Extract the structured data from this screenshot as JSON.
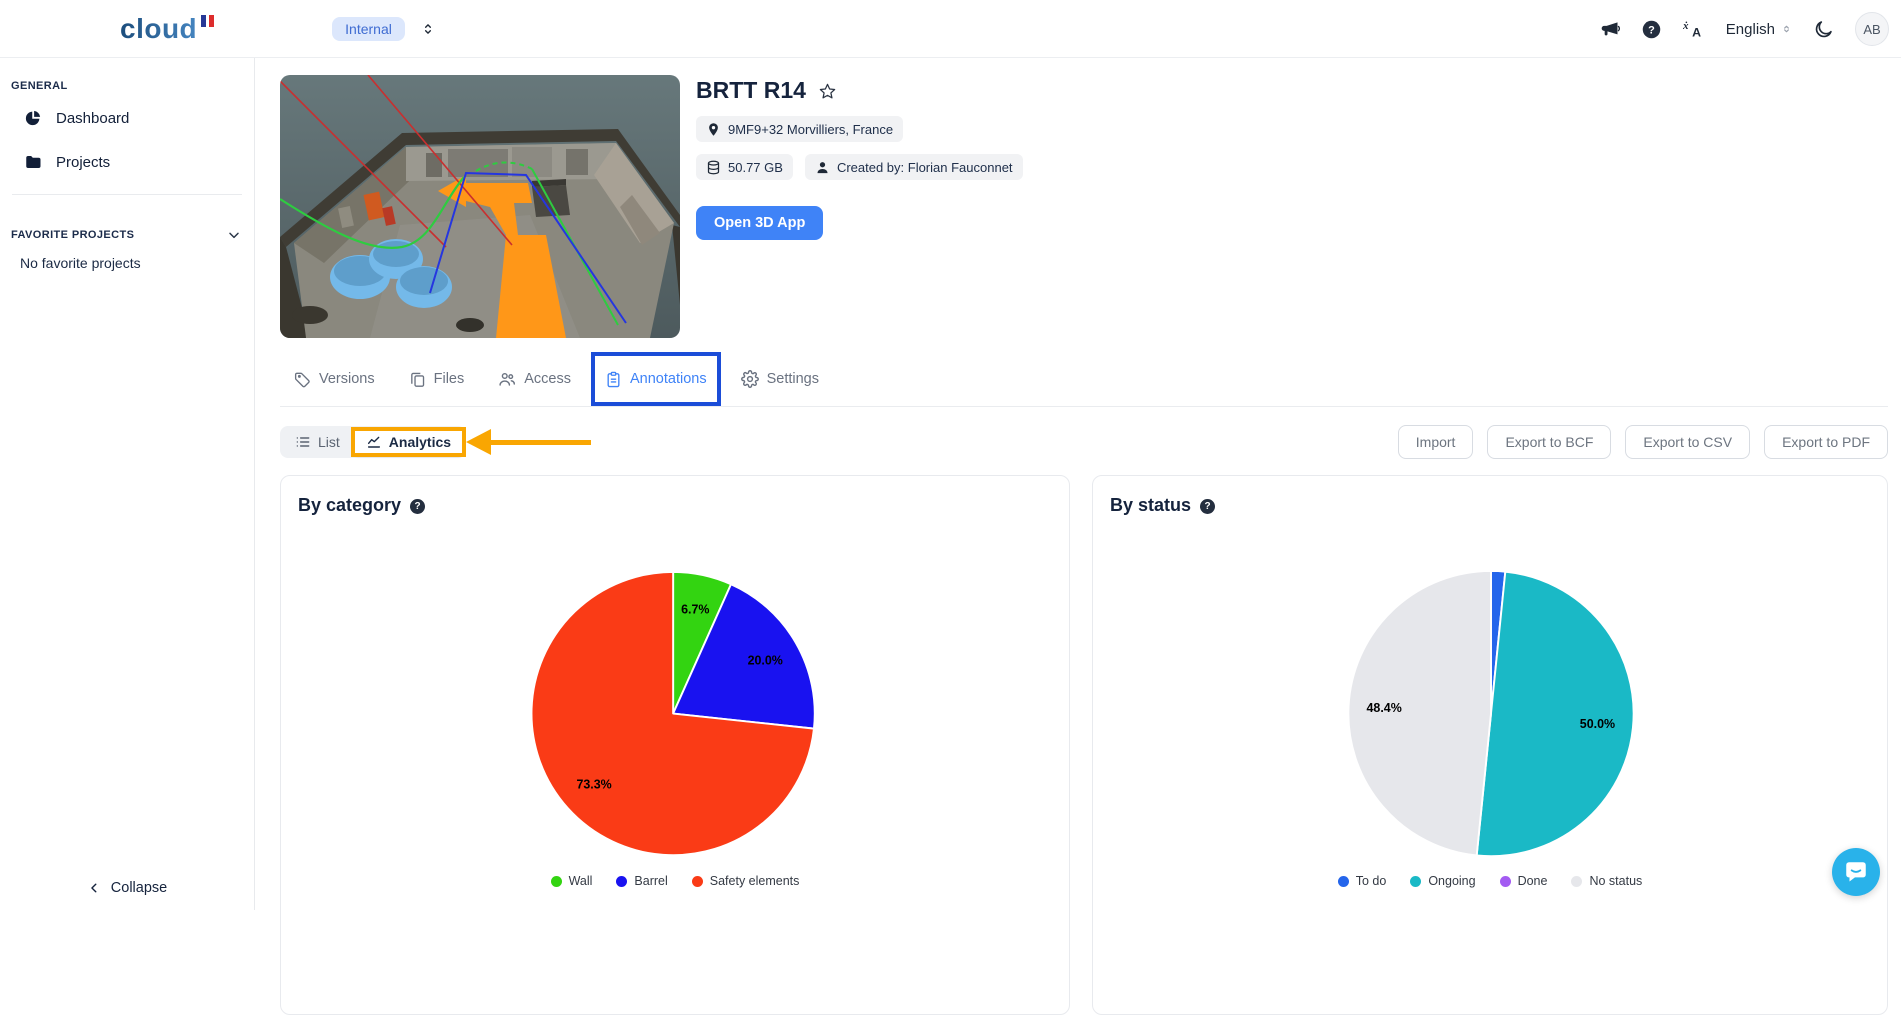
{
  "header": {
    "logo_text": "cloud",
    "environment": "Internal",
    "language": "English",
    "avatar_initials": "AB"
  },
  "sidebar": {
    "general_label": "GENERAL",
    "items": [
      {
        "label": "Dashboard"
      },
      {
        "label": "Projects"
      }
    ],
    "favorites_label": "FAVORITE PROJECTS",
    "favorites_empty": "No favorite projects",
    "collapse_label": "Collapse"
  },
  "project": {
    "title": "BRTT R14",
    "location": "9MF9+32 Morvilliers, France",
    "size": "50.77 GB",
    "created_by": "Created by: Florian Fauconnet",
    "open_app_label": "Open 3D App"
  },
  "tabs": [
    {
      "label": "Versions"
    },
    {
      "label": "Files"
    },
    {
      "label": "Access"
    },
    {
      "label": "Annotations",
      "active": true
    },
    {
      "label": "Settings"
    }
  ],
  "toolbar": {
    "view_list": "List",
    "view_analytics": "Analytics",
    "import_label": "Import",
    "export_bcf": "Export to BCF",
    "export_csv": "Export to CSV",
    "export_pdf": "Export to PDF"
  },
  "chart_data": [
    {
      "type": "pie",
      "title": "By category",
      "labels": [
        "Wall",
        "Barrel",
        "Safety elements"
      ],
      "values": [
        6.7,
        20.0,
        73.3
      ],
      "value_labels": [
        "6.7%",
        "20.0%",
        "73.3%"
      ],
      "colors": [
        "#33d411",
        "#1912f0",
        "#fa3b16"
      ],
      "legend_position": "bottom",
      "start_angle": "12 o'clock, clockwise"
    },
    {
      "type": "pie",
      "title": "By status",
      "labels": [
        "To do",
        "Ongoing",
        "Done",
        "No status"
      ],
      "values": [
        1.6,
        50.0,
        0,
        48.4
      ],
      "value_labels": [
        "",
        "50.0%",
        "",
        "48.4%"
      ],
      "colors": [
        "#2465eb",
        "#1ab9c6",
        "#a35bf2",
        "#e6e7eb"
      ],
      "legend_position": "bottom",
      "start_angle": "12 o'clock, clockwise"
    }
  ],
  "annotations_overlay": {
    "highlight_blue": "#1b4dd8",
    "highlight_orange": "#f9a602"
  }
}
